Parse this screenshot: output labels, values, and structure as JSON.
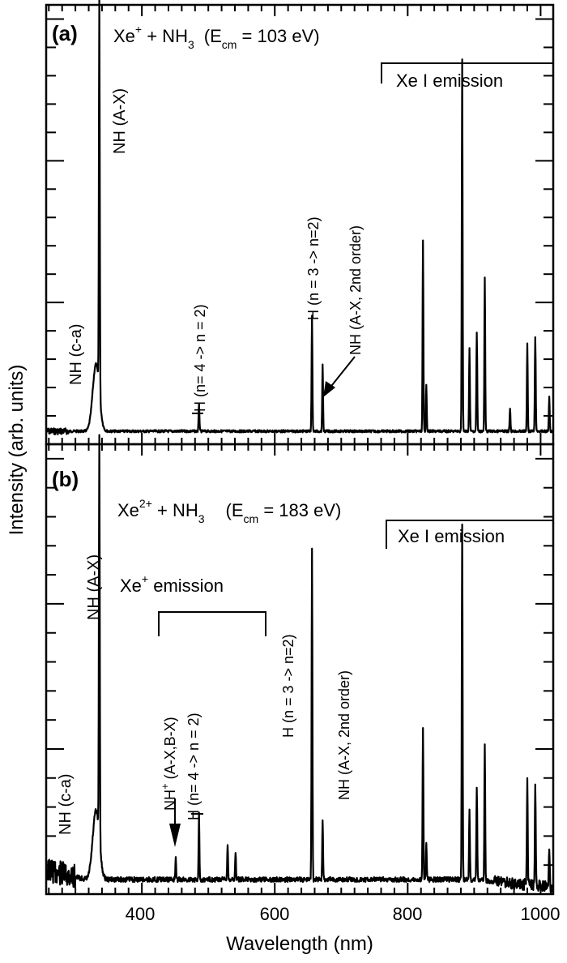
{
  "chart_data": [
    {
      "type": "line",
      "panel": "(a)",
      "title": "Xe+ + NH3 (Ecm = 103 eV)",
      "xlabel": "Wavelength (nm)",
      "ylabel": "Intensity (arb. units)",
      "xlim": [
        256,
        1019
      ],
      "ylim": [
        0,
        1.0
      ],
      "grid": false,
      "x_ticks": [
        400,
        600,
        800,
        1000
      ],
      "peaks": [
        {
          "x": 336,
          "y": 1.0,
          "label": "NH (A-X)"
        },
        {
          "x": 331,
          "y": 0.17,
          "label": "NH (c-a)",
          "broad": true
        },
        {
          "x": 486,
          "y": 0.07,
          "label": "H (n= 4 -> n = 2)"
        },
        {
          "x": 656,
          "y": 0.29,
          "label": "H (n = 3 -> n=2)"
        },
        {
          "x": 672,
          "y": 0.17,
          "label": "NH (A-X, 2nd order)"
        },
        {
          "x": 823,
          "y": 0.48
        },
        {
          "x": 828,
          "y": 0.12
        },
        {
          "x": 882,
          "y": 0.94
        },
        {
          "x": 893,
          "y": 0.21
        },
        {
          "x": 904,
          "y": 0.25
        },
        {
          "x": 916,
          "y": 0.39
        },
        {
          "x": 954,
          "y": 0.06
        },
        {
          "x": 980,
          "y": 0.22
        },
        {
          "x": 992,
          "y": 0.24
        },
        {
          "x": 1013,
          "y": 0.09
        }
      ],
      "annotations": [
        "Xe I emission"
      ]
    },
    {
      "type": "line",
      "panel": "(b)",
      "title": "Xe2+ + NH3 (Ecm = 183 eV)",
      "xlabel": "Wavelength (nm)",
      "ylabel": "Intensity (arb. units)",
      "xlim": [
        256,
        1019
      ],
      "ylim": [
        0,
        1.0
      ],
      "grid": false,
      "x_ticks": [
        400,
        600,
        800,
        1000
      ],
      "peaks": [
        {
          "x": 336,
          "y": 1.0,
          "label": "NH (A-X)"
        },
        {
          "x": 331,
          "y": 0.17,
          "label": "NH (c-a)",
          "broad": true
        },
        {
          "x": 451,
          "y": 0.05,
          "label": "NH+ (A-X,B-X)"
        },
        {
          "x": 486,
          "y": 0.16,
          "label": "H (n= 4 -> n = 2)"
        },
        {
          "x": 529,
          "y": 0.09
        },
        {
          "x": 541,
          "y": 0.07
        },
        {
          "x": 656,
          "y": 0.82,
          "label": "H (n = 3 -> n=2)"
        },
        {
          "x": 672,
          "y": 0.15,
          "label": "NH (A-X, 2nd order)"
        },
        {
          "x": 823,
          "y": 0.38
        },
        {
          "x": 828,
          "y": 0.09
        },
        {
          "x": 882,
          "y": 0.88
        },
        {
          "x": 893,
          "y": 0.17
        },
        {
          "x": 904,
          "y": 0.23
        },
        {
          "x": 916,
          "y": 0.34
        },
        {
          "x": 980,
          "y": 0.27
        },
        {
          "x": 992,
          "y": 0.25
        },
        {
          "x": 1013,
          "y": 0.1
        }
      ],
      "annotations": [
        "Xe+ emission",
        "Xe I emission"
      ]
    }
  ],
  "figure": {
    "ylabel": "Intensity (arb. units)",
    "xlabel": "Wavelength (nm)",
    "x_tick_labels": [
      "400",
      "600",
      "800",
      "1000"
    ],
    "panel_a": {
      "tag": "(a)",
      "reaction_main": "Xe",
      "reaction_sup": "+",
      "reaction_mid": " + NH",
      "reaction_sub": "3",
      "energy_open": "(E",
      "energy_sub": "cm",
      "energy_close": " = 103 eV)",
      "xe_i_label": "Xe I emission",
      "labels": {
        "nh_ax": "NH (A-X)",
        "nh_ca": "NH (c-a)",
        "h_42": "H (n= 4 -> n = 2)",
        "h_32": "H (n = 3 -> n=2)",
        "nh_2nd": "NH (A-X, 2nd order)"
      }
    },
    "panel_b": {
      "tag": "(b)",
      "reaction_main": "Xe",
      "reaction_sup": "2+",
      "reaction_mid": " + NH",
      "reaction_sub": "3",
      "energy_open": "(E",
      "energy_sub": "cm",
      "energy_close": " = 183 eV)",
      "xe_i_label": "Xe I emission",
      "xe_plus_main": "Xe",
      "xe_plus_sup": "+",
      "xe_plus_rest": "  emission",
      "labels": {
        "nh_ax": "NH (A-X)",
        "nh_ca": "NH (c-a)",
        "nhp_main": "NH",
        "nhp_sup": "+",
        "nhp_rest": " (A-X,B-X)",
        "h_42": "H (n= 4 -> n = 2)",
        "h_32": "H (n = 3 -> n=2)",
        "nh_2nd": "NH (A-X, 2nd order)"
      }
    }
  }
}
